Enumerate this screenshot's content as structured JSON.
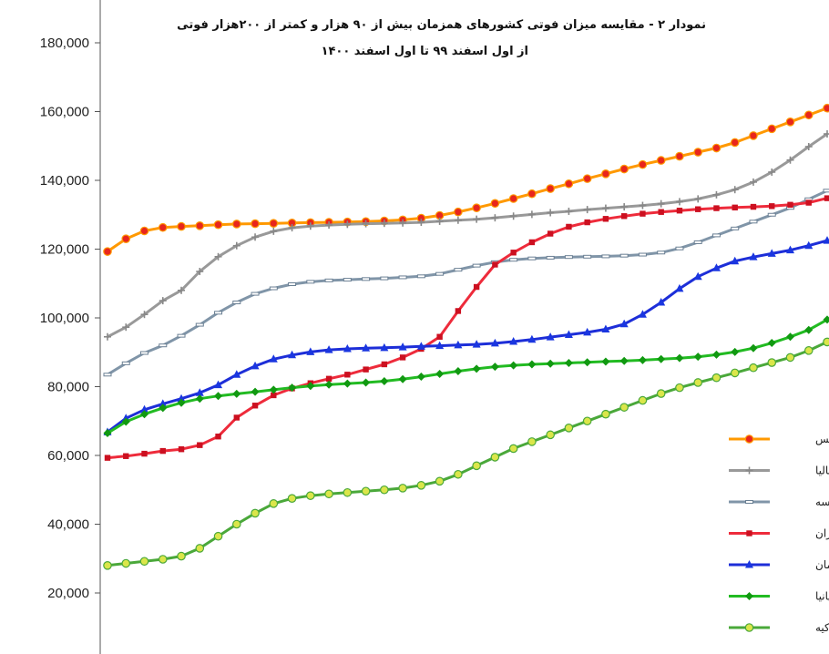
{
  "chart_data": {
    "type": "line",
    "title": "نمودار ۲ - مقایسه میزان فوتی کشورهای همزمان  بیش از ۹۰ هزار و کمتر از ۲۰۰هزار فوتی",
    "subtitle": "از اول اسفند ۹۹  تا  اول اسفند ۱۴۰۰",
    "xlabel": "",
    "ylabel": "",
    "ylim": [
      10000,
      180000
    ],
    "yticks": [
      20000,
      40000,
      60000,
      80000,
      100000,
      120000,
      140000,
      160000,
      180000
    ],
    "ytick_labels": [
      "20,000",
      "40,000",
      "60,000",
      "80,000",
      "100,000",
      "120,000",
      "140,000",
      "160,000",
      "180,000"
    ],
    "x": [
      1,
      2,
      3,
      4,
      5,
      6,
      7,
      8,
      9,
      10,
      11,
      12,
      13,
      14,
      15,
      16,
      17,
      18,
      19,
      20,
      21,
      22,
      23,
      24,
      25,
      26,
      27,
      28,
      29,
      30,
      31,
      32,
      33,
      34,
      35,
      36,
      37,
      38,
      39,
      40
    ],
    "grid": false,
    "legend_position": "right",
    "series": [
      {
        "name": "انگلیس",
        "color": "#ff9900",
        "marker_color": "#e8261d",
        "marker": "circle",
        "values": [
          119300,
          123000,
          125300,
          126300,
          126600,
          126800,
          127100,
          127300,
          127400,
          127500,
          127600,
          127700,
          127800,
          127900,
          128000,
          128200,
          128500,
          129000,
          129800,
          130800,
          132000,
          133300,
          134700,
          136100,
          137600,
          139000,
          140500,
          141900,
          143300,
          144600,
          145800,
          147000,
          148200,
          149400,
          151000,
          153000,
          155000,
          157000,
          159000,
          161000
        ]
      },
      {
        "name": "ایتالیا",
        "color": "#999999",
        "marker_color": "#888888",
        "marker": "plus",
        "values": [
          94500,
          97300,
          101000,
          105000,
          108000,
          113500,
          117800,
          121000,
          123500,
          125200,
          126200,
          126700,
          127000,
          127200,
          127400,
          127500,
          127600,
          127800,
          128100,
          128400,
          128700,
          129100,
          129600,
          130100,
          130600,
          131000,
          131500,
          131900,
          132300,
          132700,
          133200,
          133800,
          134600,
          135800,
          137300,
          139500,
          142400,
          145900,
          149800,
          153500
        ]
      },
      {
        "name": "فرانسه",
        "color": "#8095a8",
        "marker_color": "#6a7f93",
        "marker": "dash",
        "values": [
          83500,
          86800,
          89800,
          92000,
          94800,
          98000,
          101500,
          104500,
          107000,
          108600,
          109800,
          110500,
          110900,
          111100,
          111300,
          111500,
          111800,
          112100,
          112800,
          114000,
          115200,
          116200,
          116900,
          117300,
          117500,
          117700,
          117800,
          117900,
          118100,
          118400,
          119000,
          120200,
          122000,
          124000,
          126000,
          128000,
          130000,
          132000,
          134500,
          137000
        ]
      },
      {
        "name": "ایران",
        "color": "#ee2b3b",
        "marker_color": "#cc1020",
        "marker": "square",
        "values": [
          59300,
          59800,
          60500,
          61300,
          61800,
          63000,
          65500,
          71000,
          74500,
          77500,
          79500,
          81000,
          82300,
          83500,
          85000,
          86500,
          88500,
          91000,
          94500,
          102000,
          109000,
          115500,
          119000,
          122000,
          124500,
          126500,
          127800,
          128800,
          129600,
          130300,
          130800,
          131200,
          131600,
          131900,
          132100,
          132300,
          132500,
          132900,
          133500,
          134800
        ]
      },
      {
        "name": "آلمان",
        "color": "#1d2ed8",
        "marker_color": "#1a36e0",
        "marker": "triangle",
        "values": [
          66800,
          70800,
          73300,
          75000,
          76500,
          78200,
          80500,
          83500,
          86000,
          88000,
          89200,
          90100,
          90700,
          91000,
          91200,
          91300,
          91500,
          91700,
          91900,
          92100,
          92300,
          92600,
          93100,
          93700,
          94400,
          95100,
          95800,
          96700,
          98200,
          101000,
          104500,
          108500,
          112000,
          114500,
          116500,
          117700,
          118700,
          119700,
          121000,
          122500
        ]
      },
      {
        "name": "اسپانیا",
        "color": "#22bb22",
        "marker_color": "#119911",
        "marker": "diamond",
        "values": [
          66500,
          69800,
          72000,
          73800,
          75300,
          76500,
          77300,
          77900,
          78500,
          79100,
          79700,
          80200,
          80600,
          80900,
          81200,
          81600,
          82200,
          82900,
          83700,
          84500,
          85200,
          85800,
          86200,
          86500,
          86700,
          86900,
          87100,
          87300,
          87500,
          87700,
          88000,
          88300,
          88700,
          89300,
          90100,
          91200,
          92700,
          94500,
          96500,
          99500
        ]
      },
      {
        "name": "ترکیه",
        "color": "#4aa83a",
        "marker_color": "#dbe64a",
        "marker": "circle",
        "values": [
          28000,
          28600,
          29200,
          29800,
          30700,
          33000,
          36500,
          40000,
          43200,
          46000,
          47500,
          48300,
          48800,
          49200,
          49600,
          50000,
          50500,
          51300,
          52500,
          54500,
          57000,
          59500,
          62000,
          64000,
          66000,
          68000,
          70000,
          72000,
          74000,
          76000,
          78000,
          79700,
          81200,
          82600,
          84000,
          85500,
          87000,
          88500,
          90500,
          93000
        ]
      }
    ]
  }
}
